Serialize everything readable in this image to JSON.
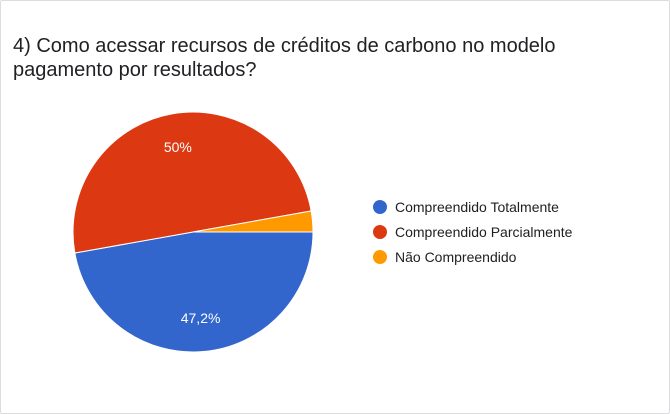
{
  "title": "4) Como acessar recursos de créditos de carbono no modelo\npagamento por resultados?",
  "chart_data": {
    "type": "pie",
    "categories": [
      "Compreendido Totalmente",
      "Compreendido Parcialmente",
      "Não Compreendido"
    ],
    "values": [
      47.2,
      50.0,
      2.8
    ],
    "colors": [
      "#3366cc",
      "#dc3912",
      "#ff9900"
    ],
    "data_labels": [
      "47,2%",
      "50%",
      ""
    ],
    "legend_position": "right"
  }
}
